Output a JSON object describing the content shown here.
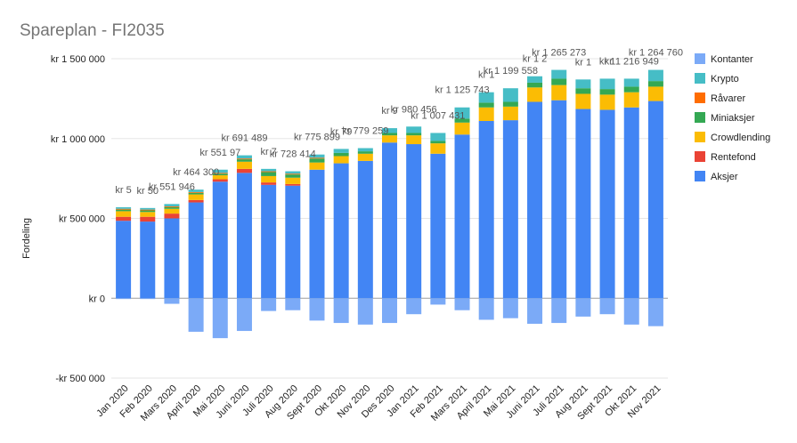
{
  "chart_data": {
    "type": "bar",
    "stacked": true,
    "title": "Spareplan - FI2035",
    "ylabel": "Fordeling",
    "xlabel": "",
    "ylim": [
      -500000,
      1500000
    ],
    "y_ticks": [
      -500000,
      0,
      500000,
      1000000,
      1500000
    ],
    "y_tick_labels": [
      "-kr  500 000",
      "kr   0",
      "kr  500 000",
      "kr 1 000 000",
      "kr 1 500 000"
    ],
    "grid": true,
    "legend_position": "right",
    "categories": [
      "Jan 2020",
      "Feb 2020",
      "Mars 2020",
      "April 2020",
      "Mai 2020",
      "Juni 2020",
      "Juli 2020",
      "Aug 2020",
      "Sept 2020",
      "Okt 2020",
      "Nov 2020",
      "Des 2020",
      "Jan 2021",
      "Feb 2021",
      "Mars 2021",
      "April 2021",
      "Mai 2021",
      "Juni 2021",
      "Juli 2021",
      "Aug 2021",
      "Sept 2021",
      "Okt 2021",
      "Nov 2021"
    ],
    "series": [
      {
        "name": "Aksjer",
        "color": "#4285F4",
        "values": [
          485000,
          480000,
          500000,
          600000,
          730000,
          785000,
          710000,
          705000,
          805000,
          845000,
          860000,
          975000,
          965000,
          905000,
          1025000,
          1110000,
          1115000,
          1230000,
          1240000,
          1185000,
          1180000,
          1195000,
          1235000
        ]
      },
      {
        "name": "Rentefond",
        "color": "#EA4335",
        "values": [
          25000,
          30000,
          30000,
          15000,
          15000,
          25000,
          15000,
          10000,
          0,
          0,
          0,
          0,
          0,
          0,
          0,
          0,
          0,
          0,
          0,
          0,
          0,
          0,
          0
        ]
      },
      {
        "name": "Crowdlending",
        "color": "#FBBC04",
        "values": [
          35000,
          30000,
          30000,
          35000,
          25000,
          45000,
          40000,
          40000,
          45000,
          45000,
          45000,
          45000,
          55000,
          65000,
          75000,
          85000,
          85000,
          90000,
          95000,
          95000,
          95000,
          95000,
          90000
        ]
      },
      {
        "name": "Miniaksjer",
        "color": "#34A853",
        "values": [
          10000,
          10000,
          10000,
          10000,
          10000,
          15000,
          25000,
          20000,
          25000,
          20000,
          15000,
          15000,
          15000,
          15000,
          25000,
          30000,
          30000,
          30000,
          40000,
          35000,
          35000,
          35000,
          35000
        ]
      },
      {
        "name": "Råvarer",
        "color": "#FF6D01",
        "values": [
          5000,
          5000,
          5000,
          5000,
          5000,
          5000,
          5000,
          5000,
          5000,
          0,
          0,
          0,
          0,
          0,
          0,
          0,
          0,
          0,
          0,
          0,
          0,
          0,
          0
        ]
      },
      {
        "name": "Krypto",
        "color": "#46BDC6",
        "values": [
          10000,
          10000,
          15000,
          15000,
          20000,
          20000,
          15000,
          15000,
          20000,
          25000,
          20000,
          30000,
          40000,
          50000,
          70000,
          65000,
          85000,
          40000,
          55000,
          55000,
          65000,
          50000,
          70000
        ]
      },
      {
        "name": "Kontanter",
        "color": "#7BAAF7",
        "values": [
          -5000,
          -5000,
          -35000,
          -210000,
          -250000,
          -205000,
          -80000,
          -75000,
          -140000,
          -155000,
          -165000,
          -155000,
          -100000,
          -40000,
          -75000,
          -135000,
          -125000,
          -160000,
          -155000,
          -115000,
          -100000,
          -165000,
          -175000
        ]
      }
    ],
    "legend_order": [
      "Kontanter",
      "Krypto",
      "Råvarer",
      "Miniaksjer",
      "Crowdlending",
      "Rentefond",
      "Aksjer"
    ],
    "data_labels": [
      {
        "index": 0,
        "text": "kr  5"
      },
      {
        "index": 1,
        "text": "kr 50"
      },
      {
        "index": 2,
        "text": "kr  551 946"
      },
      {
        "index": 3,
        "text": "kr  464 300"
      },
      {
        "index": 4,
        "text": "kr  551 97"
      },
      {
        "index": 5,
        "text": "kr  691 489"
      },
      {
        "index": 6,
        "text": "kr  7"
      },
      {
        "index": 7,
        "text": "kr  728 414"
      },
      {
        "index": 8,
        "text": "kr  775 899"
      },
      {
        "index": 9,
        "text": "kr  79"
      },
      {
        "index": 10,
        "text": "kr  779 259"
      },
      {
        "index": 11,
        "text": "kr  9"
      },
      {
        "index": 12,
        "text": "kr  980 456"
      },
      {
        "index": 13,
        "text": "kr 1 007 431"
      },
      {
        "index": 14,
        "text": "kr 1 125 743"
      },
      {
        "index": 15,
        "text": "kr 1"
      },
      {
        "index": 16,
        "text": "kr 1 199 558"
      },
      {
        "index": 17,
        "text": "kr 1 2"
      },
      {
        "index": 18,
        "text": "kr 1 265 273"
      },
      {
        "index": 19,
        "text": "kr 1"
      },
      {
        "index": 20,
        "text": "kr 1"
      },
      {
        "index": 21,
        "text": "kr 1 216 949"
      },
      {
        "index": 22,
        "text": "kr 1 264 760"
      }
    ]
  }
}
